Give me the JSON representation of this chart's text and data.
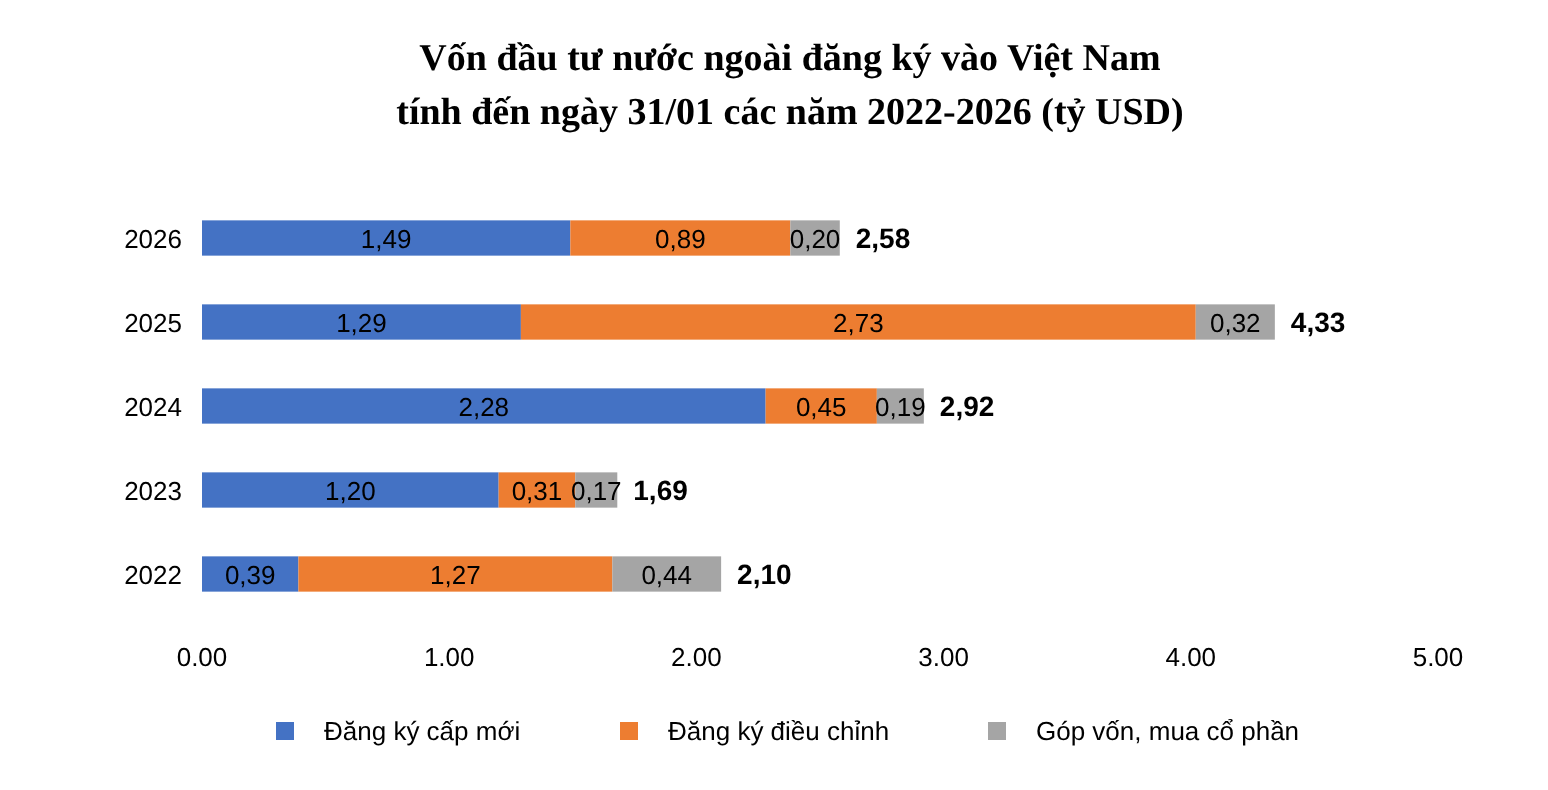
{
  "chart_data": {
    "type": "bar",
    "orientation": "horizontal",
    "stacked": true,
    "title": "Vốn đầu tư nước ngoài đăng ký vào Việt Nam",
    "subtitle": "tính đến ngày 31/01 các năm 2022-2026 (tỷ USD)",
    "categories": [
      "2026",
      "2025",
      "2024",
      "2023",
      "2022"
    ],
    "series": [
      {
        "name": "Đăng ký cấp mới",
        "color": "#4472c4",
        "values": [
          1.49,
          1.29,
          2.28,
          1.2,
          0.39
        ],
        "value_labels": [
          "1,49",
          "1,29",
          "2,28",
          "1,20",
          "0,39"
        ]
      },
      {
        "name": "Đăng ký điều chỉnh",
        "color": "#ed7d31",
        "values": [
          0.89,
          2.73,
          0.45,
          0.31,
          1.27
        ],
        "value_labels": [
          "0,89",
          "2,73",
          "0,45",
          "0,31",
          "1,27"
        ]
      },
      {
        "name": "Góp vốn, mua cổ phần",
        "color": "#a5a5a5",
        "values": [
          0.2,
          0.32,
          0.19,
          0.17,
          0.44
        ],
        "value_labels": [
          "0,20",
          "0,32",
          "0,19",
          "0,17",
          "0,44"
        ]
      }
    ],
    "totals": [
      "2,58",
      "4,33",
      "2,92",
      "1,69",
      "2,10"
    ],
    "xlim": [
      0,
      5
    ],
    "xticks": [
      {
        "value": 0,
        "label": "0.00"
      },
      {
        "value": 1,
        "label": "1.00"
      },
      {
        "value": 2,
        "label": "2.00"
      },
      {
        "value": 3,
        "label": "3.00"
      },
      {
        "value": 4,
        "label": "4.00"
      },
      {
        "value": 5,
        "label": "5.00"
      }
    ],
    "grid": false,
    "legend": "bottom"
  }
}
